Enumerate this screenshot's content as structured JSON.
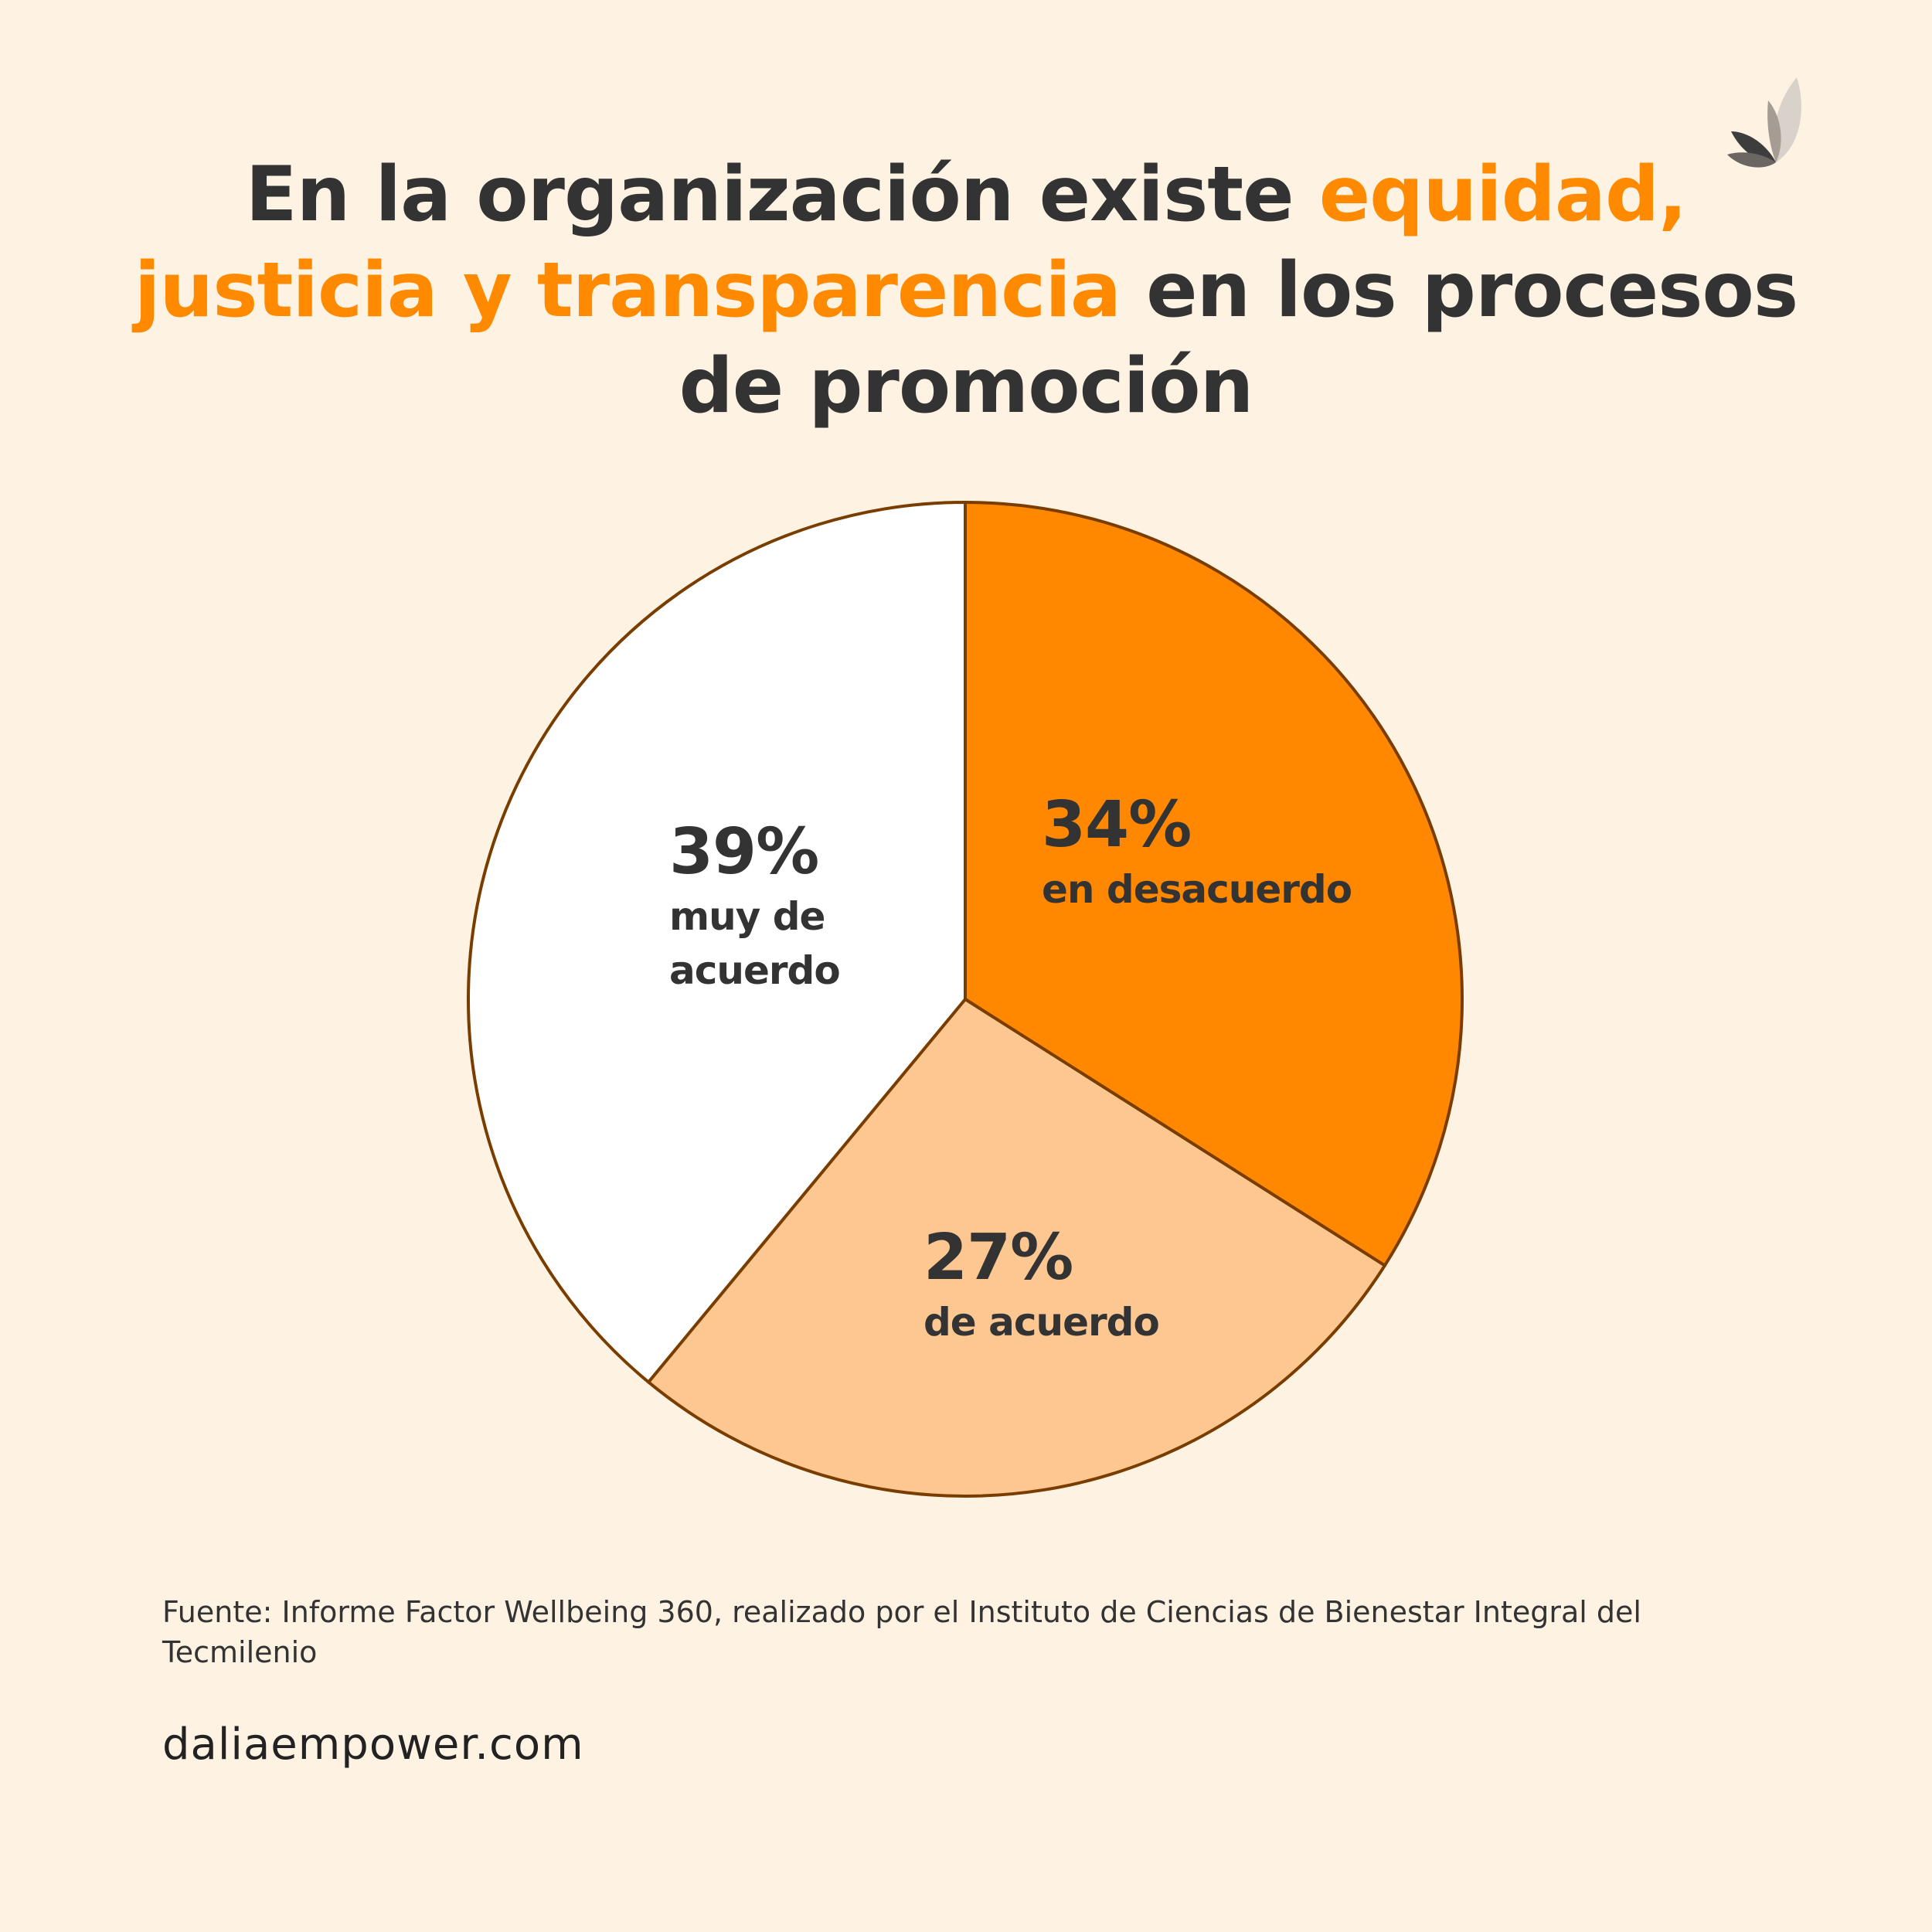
{
  "title": {
    "part1": "En la organización existe ",
    "highlight": "equidad, justicia y transparencia",
    "part2": " en los procesos de promoción",
    "highlight_color": "#ff8a00"
  },
  "logo": {
    "icon": "lotus-leaves-icon"
  },
  "chart_data": {
    "type": "pie",
    "title": "En la organización existe equidad, justicia y transparencia en los procesos de promoción",
    "slices": [
      {
        "label": "en desacuerdo",
        "value": 34,
        "value_label": "34%",
        "color": "#ff8800"
      },
      {
        "label": "de acuerdo",
        "value": 27,
        "value_label": "27%",
        "color": "#fdc791"
      },
      {
        "label": "muy de acuerdo",
        "value": 39,
        "value_label": "39%",
        "color": "#ffffff"
      }
    ],
    "start": "top, clockwise",
    "stroke_color": "#7a3d00",
    "legend": "none"
  },
  "source": "Fuente: Informe Factor Wellbeing 360, realizado por el Instituto de Ciencias de Bienestar Integral del Tecmilenio",
  "website": "daliaempower.com"
}
